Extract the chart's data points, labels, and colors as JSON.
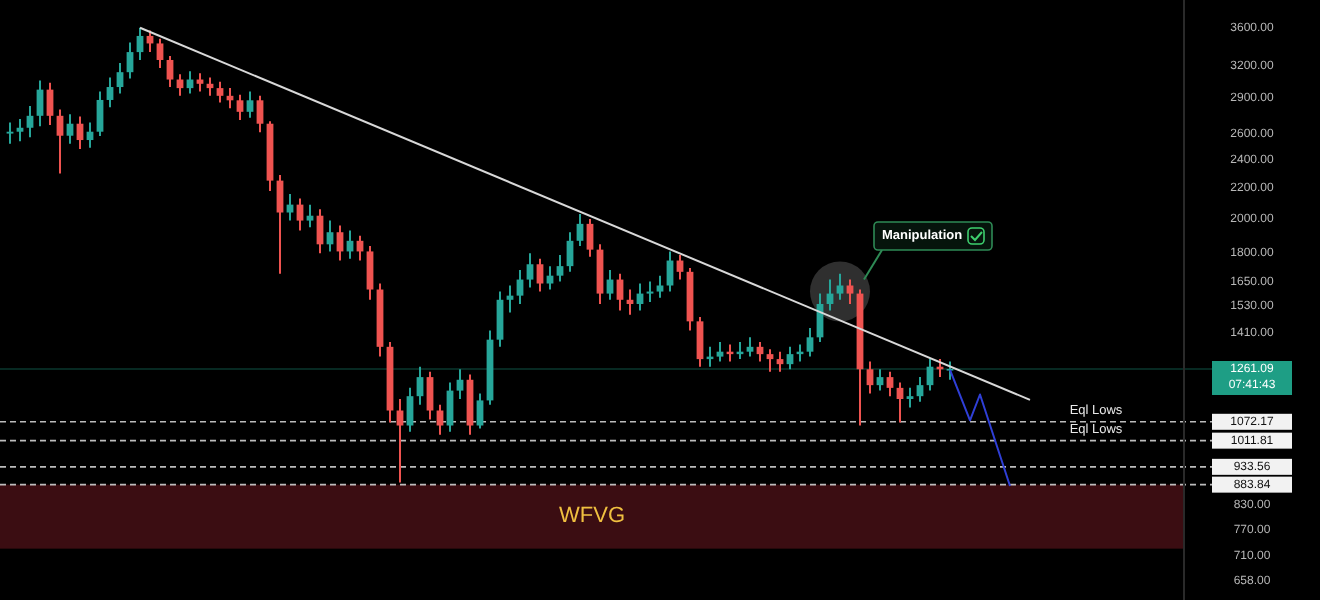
{
  "chart_data": {
    "type": "candlestick",
    "categories": [
      null,
      null,
      null,
      null,
      null,
      null,
      null,
      null,
      null,
      null,
      null,
      null,
      null,
      null,
      null,
      null,
      null,
      null,
      null,
      null,
      null,
      null,
      null,
      null,
      null,
      null,
      null,
      null,
      null,
      null,
      null,
      null,
      null,
      null,
      null,
      null,
      null,
      null,
      null,
      null,
      null,
      null,
      null,
      null,
      null,
      null,
      null,
      null,
      null,
      null,
      null,
      null,
      null,
      null,
      null,
      null,
      null,
      null,
      null,
      null,
      null,
      null,
      null,
      null,
      null,
      null,
      null,
      null,
      null,
      null,
      null,
      null,
      null,
      null,
      null,
      null,
      null,
      null,
      null,
      null,
      null,
      null,
      null,
      null,
      null,
      null,
      null,
      null,
      null,
      null,
      null,
      null,
      null,
      null,
      null,
      null,
      null,
      null,
      null,
      null,
      null,
      null,
      null,
      null,
      null,
      null,
      null,
      null,
      null,
      null,
      null,
      null,
      null,
      null,
      null,
      null,
      null,
      null
    ],
    "ohlc": [
      [
        2600,
        2690,
        2520,
        2615
      ],
      [
        2615,
        2720,
        2540,
        2647
      ],
      [
        2647,
        2830,
        2570,
        2746
      ],
      [
        2746,
        3060,
        2660,
        2976
      ],
      [
        2976,
        3040,
        2670,
        2746
      ],
      [
        2746,
        2800,
        2300,
        2583
      ],
      [
        2583,
        2760,
        2520,
        2680
      ],
      [
        2680,
        2740,
        2480,
        2549
      ],
      [
        2549,
        2690,
        2490,
        2615
      ],
      [
        2615,
        2960,
        2580,
        2883
      ],
      [
        2883,
        3090,
        2820,
        3000
      ],
      [
        3000,
        3230,
        2940,
        3140
      ],
      [
        3140,
        3440,
        3080,
        3340
      ],
      [
        3340,
        3600,
        3260,
        3510
      ],
      [
        3510,
        3570,
        3340,
        3430
      ],
      [
        3430,
        3480,
        3180,
        3260
      ],
      [
        3260,
        3300,
        3000,
        3070
      ],
      [
        3070,
        3120,
        2920,
        2990
      ],
      [
        2990,
        3150,
        2940,
        3070
      ],
      [
        3070,
        3130,
        2960,
        3030
      ],
      [
        3030,
        3090,
        2920,
        2990
      ],
      [
        2990,
        3050,
        2860,
        2920
      ],
      [
        2920,
        2990,
        2810,
        2880
      ],
      [
        2880,
        2930,
        2710,
        2780
      ],
      [
        2780,
        2960,
        2730,
        2880
      ],
      [
        2880,
        2920,
        2610,
        2680
      ],
      [
        2680,
        2700,
        2180,
        2250
      ],
      [
        2250,
        2290,
        1690,
        2040
      ],
      [
        2040,
        2160,
        1990,
        2090
      ],
      [
        2090,
        2130,
        1930,
        1990
      ],
      [
        1990,
        2090,
        1950,
        2020
      ],
      [
        2020,
        2060,
        1800,
        1850
      ],
      [
        1850,
        1990,
        1810,
        1920
      ],
      [
        1920,
        1960,
        1760,
        1810
      ],
      [
        1810,
        1930,
        1770,
        1870
      ],
      [
        1870,
        1900,
        1760,
        1810
      ],
      [
        1810,
        1840,
        1560,
        1610
      ],
      [
        1610,
        1640,
        1310,
        1350
      ],
      [
        1350,
        1370,
        1070,
        1110
      ],
      [
        1110,
        1150,
        890,
        1060
      ],
      [
        1060,
        1190,
        1040,
        1160
      ],
      [
        1160,
        1270,
        1130,
        1230
      ],
      [
        1230,
        1250,
        1080,
        1110
      ],
      [
        1110,
        1130,
        1030,
        1060
      ],
      [
        1060,
        1210,
        1040,
        1180
      ],
      [
        1180,
        1260,
        1150,
        1220
      ],
      [
        1220,
        1240,
        1030,
        1060
      ],
      [
        1060,
        1170,
        1050,
        1145
      ],
      [
        1145,
        1420,
        1130,
        1380
      ],
      [
        1380,
        1600,
        1350,
        1560
      ],
      [
        1560,
        1630,
        1500,
        1580
      ],
      [
        1580,
        1710,
        1540,
        1660
      ],
      [
        1660,
        1800,
        1620,
        1740
      ],
      [
        1740,
        1770,
        1600,
        1640
      ],
      [
        1640,
        1730,
        1610,
        1680
      ],
      [
        1680,
        1790,
        1650,
        1730
      ],
      [
        1730,
        1920,
        1700,
        1870
      ],
      [
        1870,
        2030,
        1840,
        1970
      ],
      [
        1970,
        2000,
        1780,
        1820
      ],
      [
        1820,
        1850,
        1540,
        1590
      ],
      [
        1590,
        1710,
        1560,
        1660
      ],
      [
        1660,
        1690,
        1510,
        1560
      ],
      [
        1560,
        1610,
        1490,
        1540
      ],
      [
        1540,
        1640,
        1510,
        1590
      ],
      [
        1590,
        1650,
        1550,
        1600
      ],
      [
        1600,
        1680,
        1570,
        1630
      ],
      [
        1630,
        1810,
        1600,
        1760
      ],
      [
        1760,
        1790,
        1660,
        1700
      ],
      [
        1700,
        1720,
        1420,
        1460
      ],
      [
        1460,
        1480,
        1270,
        1300
      ],
      [
        1300,
        1350,
        1270,
        1310
      ],
      [
        1310,
        1370,
        1290,
        1330
      ],
      [
        1330,
        1360,
        1290,
        1320
      ],
      [
        1320,
        1370,
        1300,
        1330
      ],
      [
        1330,
        1390,
        1310,
        1350
      ],
      [
        1350,
        1370,
        1290,
        1320
      ],
      [
        1320,
        1340,
        1250,
        1300
      ],
      [
        1300,
        1330,
        1250,
        1280
      ],
      [
        1280,
        1350,
        1260,
        1320
      ],
      [
        1320,
        1360,
        1290,
        1330
      ],
      [
        1330,
        1430,
        1310,
        1390
      ],
      [
        1390,
        1590,
        1370,
        1540
      ],
      [
        1540,
        1660,
        1510,
        1590
      ],
      [
        1590,
        1690,
        1560,
        1630
      ],
      [
        1630,
        1660,
        1540,
        1590
      ],
      [
        1590,
        1610,
        1060,
        1260
      ],
      [
        1260,
        1290,
        1170,
        1200
      ],
      [
        1200,
        1260,
        1180,
        1230
      ],
      [
        1230,
        1250,
        1160,
        1190
      ],
      [
        1190,
        1210,
        1070,
        1150
      ],
      [
        1150,
        1190,
        1120,
        1160
      ],
      [
        1160,
        1230,
        1140,
        1200
      ],
      [
        1200,
        1300,
        1180,
        1270
      ],
      [
        1270,
        1300,
        1230,
        1260
      ],
      [
        1260,
        1290,
        1220,
        1261.09
      ],
      null,
      null,
      null,
      null,
      null,
      null,
      null,
      null,
      null,
      null,
      null,
      null,
      null,
      null,
      null,
      null,
      null,
      null,
      null,
      null,
      null,
      null,
      null
    ],
    "series": [
      {
        "type": "line",
        "color": "#d8d8d8",
        "values": [
          null,
          null,
          null,
          null,
          null,
          null,
          null,
          null,
          null,
          null,
          null,
          null,
          null,
          3600,
          null,
          null,
          null,
          null,
          null,
          null,
          null,
          null,
          null,
          null,
          null,
          null,
          null,
          null,
          null,
          null,
          null,
          null,
          null,
          null,
          null,
          null,
          null,
          null,
          null,
          null,
          null,
          null,
          null,
          null,
          null,
          null,
          null,
          null,
          null,
          null,
          null,
          null,
          null,
          null,
          null,
          null,
          null,
          null,
          null,
          null,
          null,
          null,
          null,
          null,
          null,
          null,
          null,
          null,
          null,
          null,
          null,
          null,
          null,
          null,
          null,
          null,
          null,
          null,
          null,
          null,
          null,
          null,
          null,
          null,
          null,
          null,
          null,
          null,
          null,
          null,
          null,
          null,
          null,
          null,
          null,
          null,
          null,
          null,
          null,
          null,
          null,
          null,
          1147,
          null,
          null,
          null,
          null,
          null,
          null,
          null,
          null,
          null,
          null,
          null,
          null,
          null,
          null,
          null
        ]
      },
      {
        "type": "line",
        "color": "#2f3fd6",
        "values": [
          null,
          null,
          null,
          null,
          null,
          null,
          null,
          null,
          null,
          null,
          null,
          null,
          null,
          null,
          null,
          null,
          null,
          null,
          null,
          null,
          null,
          null,
          null,
          null,
          null,
          null,
          null,
          null,
          null,
          null,
          null,
          null,
          null,
          null,
          null,
          null,
          null,
          null,
          null,
          null,
          null,
          null,
          null,
          null,
          null,
          null,
          null,
          null,
          null,
          null,
          null,
          null,
          null,
          null,
          null,
          null,
          null,
          null,
          null,
          null,
          null,
          null,
          null,
          null,
          null,
          null,
          null,
          null,
          null,
          null,
          null,
          null,
          null,
          null,
          null,
          null,
          null,
          null,
          null,
          null,
          null,
          null,
          null,
          null,
          null,
          null,
          null,
          null,
          null,
          null,
          null,
          null,
          null,
          null,
          1258,
          null,
          1077,
          1166,
          null,
          null,
          880,
          null,
          null,
          null,
          null,
          null,
          null,
          null,
          null,
          null,
          null,
          null,
          null,
          null,
          null,
          null,
          null,
          null
        ]
      }
    ],
    "log": true,
    "ylim": [
      620,
      3920
    ],
    "yticks": [
      {
        "value": 3600,
        "label": "3600.00"
      },
      {
        "value": 3200,
        "label": "3200.00"
      },
      {
        "value": 2900,
        "label": "2900.00"
      },
      {
        "value": 2600,
        "label": "2600.00"
      },
      {
        "value": 2400,
        "label": "2400.00"
      },
      {
        "value": 2200,
        "label": "2200.00"
      },
      {
        "value": 2000,
        "label": "2000.00"
      },
      {
        "value": 1800,
        "label": "1800.00"
      },
      {
        "value": 1650,
        "label": "1650.00"
      },
      {
        "value": 1530,
        "label": "1530.00"
      },
      {
        "value": 1410,
        "label": "1410.00"
      },
      {
        "value": 830,
        "label": "830.00"
      },
      {
        "value": 770,
        "label": "770.00"
      },
      {
        "value": 710,
        "label": "710.00"
      },
      {
        "value": 658,
        "label": "658.00"
      }
    ],
    "tick_labels": "y",
    "grid": false,
    "ref_lines": [
      {
        "axis": "y",
        "value": 1261.09,
        "label": "1261.09",
        "color": "#1e9e85",
        "line_style": "solid"
      },
      {
        "axis": "y",
        "value": 1072.17,
        "label": "1072.17",
        "color": "#d0d0d0",
        "line_style": "dashed"
      },
      {
        "axis": "y",
        "value": 1011.81,
        "label": "1011.81",
        "color": "#d0d0d0",
        "line_style": "dashed"
      },
      {
        "axis": "y",
        "value": 933.56,
        "label": "933.56",
        "color": "#d0d0d0",
        "line_style": "dashed"
      },
      {
        "axis": "y",
        "value": 883.84,
        "label": "883.84",
        "color": "#d0d0d0",
        "line_style": "dashed"
      }
    ],
    "bands": [
      {
        "axis": "y",
        "from": 726,
        "to": 883.84,
        "label": "WFVG",
        "color": "#3b0d12"
      }
    ],
    "annotations": [
      "Manipulation",
      {
        "text": "Eql Lows",
        "y": 1072.17
      },
      {
        "text": "Eql Lows",
        "y": 1011.81
      },
      "07:41:43"
    ]
  }
}
